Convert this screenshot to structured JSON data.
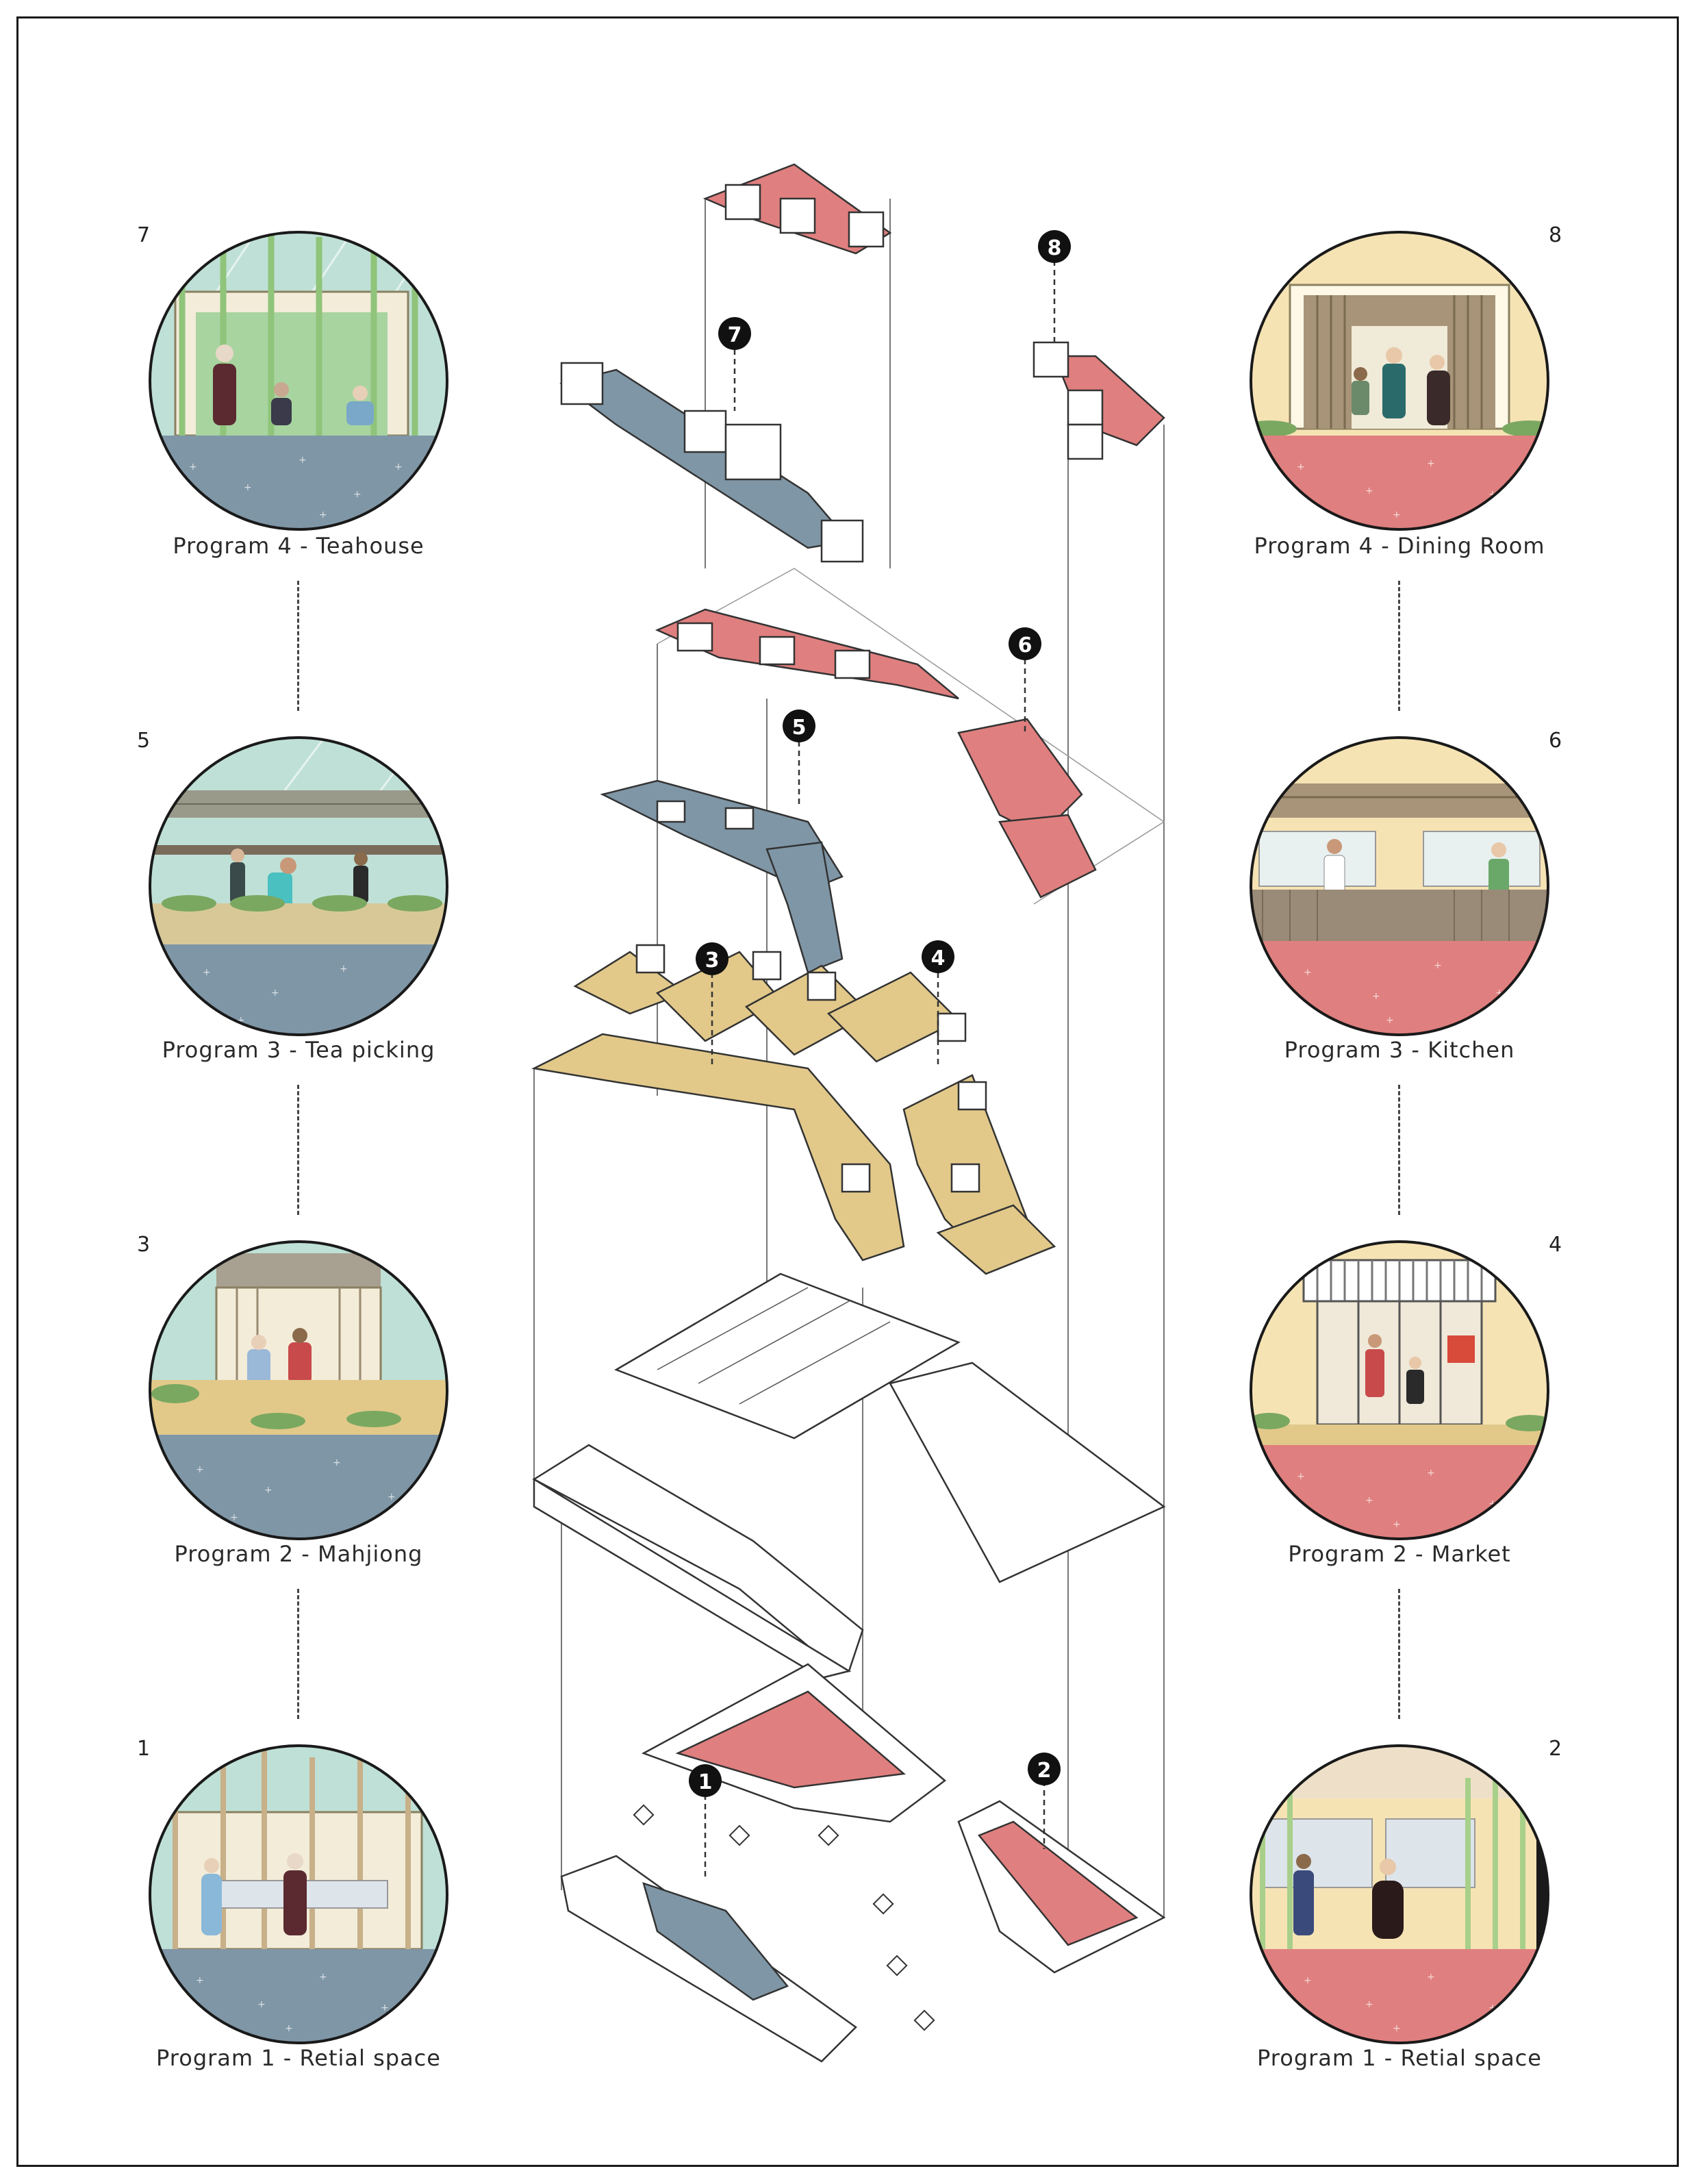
{
  "programs_left": [
    {
      "number": "7",
      "caption": "Program 4 - Teahouse",
      "wall": "#bfe0d6",
      "floor": "#7f96a6",
      "scene": "teahouse"
    },
    {
      "number": "5",
      "caption": "Program 3 - Tea picking",
      "wall": "#bfe0d6",
      "floor": "#7f96a6",
      "scene": "tea"
    },
    {
      "number": "3",
      "caption": "Program 2 - Mahjiong",
      "wall": "#bfe0d6",
      "floor": "#7f96a6",
      "scene": "mahjong"
    },
    {
      "number": "1",
      "caption": "Program 1 - Retial space",
      "wall": "#bfe0d6",
      "floor": "#7f96a6",
      "scene": "retail"
    }
  ],
  "programs_right": [
    {
      "number": "8",
      "caption": "Program 4 - Dining Room",
      "wall": "#f6e3b4",
      "floor": "#e07f7f",
      "scene": "dining"
    },
    {
      "number": "6",
      "caption": "Program 3 - Kitchen",
      "wall": "#f6e3b4",
      "floor": "#e07f7f",
      "scene": "kitchen"
    },
    {
      "number": "4",
      "caption": "Program 2 - Market",
      "wall": "#f6e3b4",
      "floor": "#e07f7f",
      "scene": "market"
    },
    {
      "number": "2",
      "caption": "Program 1 - Retial space",
      "wall": "#f6e3b4",
      "floor": "#e07f7f",
      "scene": "retail2"
    }
  ],
  "markers": [
    "1",
    "2",
    "3",
    "4",
    "5",
    "6",
    "7",
    "8"
  ],
  "colors": {
    "pink": "#e07f7f",
    "slate": "#7f96a6",
    "sand": "#e2c98a",
    "mint": "#bfe0d6",
    "cream": "#f6e3b4"
  }
}
